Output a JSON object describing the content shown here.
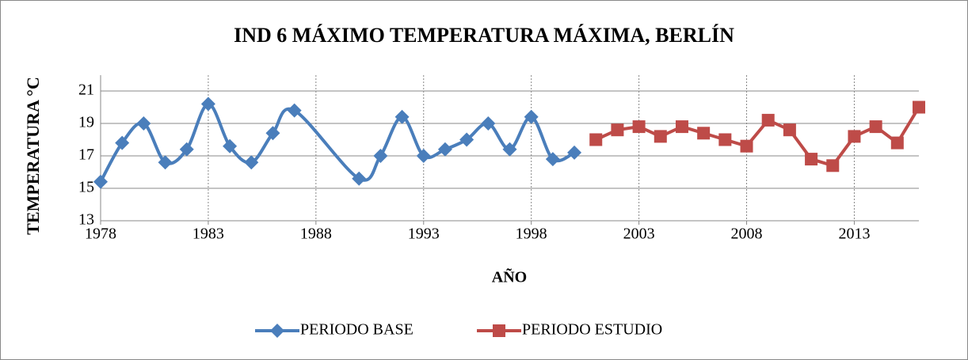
{
  "chart_data": {
    "type": "line",
    "title": "IND 6 MÁXIMO TEMPERATURA MÁXIMA, BERLÍN",
    "x_label": "AÑO",
    "y_label": "TEMPERATURA °C",
    "xlim": [
      1978,
      2016
    ],
    "xticks": [
      1978,
      1983,
      1988,
      1993,
      1998,
      2003,
      2008,
      2013
    ],
    "ylim": [
      13,
      21
    ],
    "yticks": [
      13,
      15,
      17,
      19,
      21
    ],
    "grid": true,
    "legend": "bottom",
    "series": [
      {
        "name": "PERIODO BASE",
        "color": "#4a7ebb",
        "marker": "diamond",
        "smooth": true,
        "x": [
          1978,
          1979,
          1980,
          1981,
          1982,
          1983,
          1984,
          1985,
          1986,
          1987,
          1990,
          1991,
          1992,
          1993,
          1994,
          1995,
          1996,
          1997,
          1998,
          1999,
          2000
        ],
        "values": [
          15.4,
          17.8,
          19.0,
          16.6,
          17.4,
          20.2,
          17.6,
          16.6,
          18.4,
          19.8,
          15.6,
          17.0,
          19.4,
          17.0,
          17.4,
          18.0,
          19.0,
          17.4,
          19.4,
          16.8,
          17.2
        ]
      },
      {
        "name": "PERIODO ESTUDIO",
        "color": "#be4b48",
        "marker": "square",
        "smooth": false,
        "x": [
          2001,
          2002,
          2003,
          2004,
          2005,
          2006,
          2007,
          2008,
          2009,
          2010,
          2011,
          2012,
          2013,
          2014,
          2015,
          2016
        ],
        "values": [
          18.0,
          18.6,
          18.8,
          18.2,
          18.8,
          18.4,
          18.0,
          17.6,
          19.2,
          18.6,
          16.8,
          16.4,
          18.2,
          18.8,
          17.8,
          20.0
        ]
      }
    ]
  }
}
